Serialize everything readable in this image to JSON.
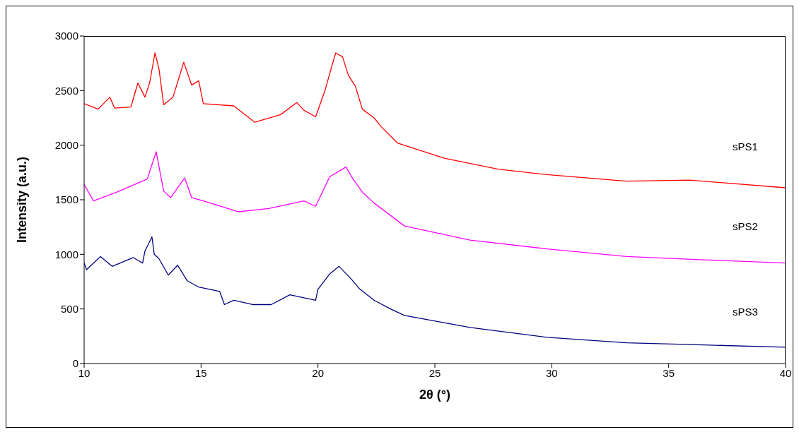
{
  "chart_data": {
    "type": "line",
    "xlabel": "2θ (°)",
    "ylabel": "Intensity (a.u.)",
    "xlim": [
      10,
      40
    ],
    "xticks": [
      10,
      15,
      20,
      25,
      30,
      35,
      40
    ],
    "ylim": [
      0,
      3000
    ],
    "yticks": [
      0,
      500,
      1000,
      1500,
      2000,
      2500,
      3000
    ],
    "grid": false,
    "marker": "none",
    "line_style": "solid",
    "series": [
      {
        "name": "sPS1",
        "color": "#ff0000",
        "x": [
          10,
          10.6,
          11.1,
          11.3,
          12.0,
          12.3,
          12.6,
          12.8,
          13.03,
          13.2,
          13.4,
          13.8,
          14.26,
          14.6,
          14.9,
          15.1,
          16.4,
          17.3,
          18.4,
          19.1,
          19.4,
          19.9,
          20.3,
          20.6,
          20.76,
          21.05,
          21.3,
          21.6,
          21.9,
          22.4,
          22.7,
          23.4,
          25.4,
          27.7,
          29.8,
          33.2,
          35.9,
          40
        ],
        "values": [
          2380,
          2330,
          2440,
          2340,
          2350,
          2570,
          2440,
          2570,
          2845,
          2700,
          2370,
          2440,
          2760,
          2550,
          2590,
          2380,
          2360,
          2210,
          2280,
          2390,
          2320,
          2260,
          2500,
          2730,
          2845,
          2810,
          2640,
          2540,
          2330,
          2250,
          2170,
          2020,
          1880,
          1780,
          1730,
          1670,
          1680,
          1610
        ]
      },
      {
        "name": "sPS2",
        "color": "#ff00ff",
        "x": [
          10,
          10.4,
          11.4,
          12.7,
          13.08,
          13.4,
          13.7,
          14.3,
          14.6,
          15.4,
          16.6,
          17.9,
          19.4,
          19.9,
          20.5,
          21.2,
          21.5,
          21.9,
          22.4,
          23.7,
          26.5,
          29.8,
          33.2,
          36.5,
          40
        ],
        "values": [
          1640,
          1490,
          1570,
          1690,
          1940,
          1580,
          1520,
          1700,
          1520,
          1470,
          1390,
          1420,
          1490,
          1440,
          1710,
          1800,
          1690,
          1570,
          1470,
          1260,
          1130,
          1050,
          980,
          950,
          920
        ]
      },
      {
        "name": "sPS3",
        "color": "#000080",
        "x": [
          10,
          10.1,
          10.7,
          11.2,
          12.1,
          12.5,
          12.6,
          12.9,
          13.0,
          13.2,
          13.6,
          14.0,
          14.4,
          14.9,
          15.8,
          16.0,
          16.4,
          17.2,
          18.0,
          18.8,
          19.9,
          20.0,
          20.5,
          20.9,
          21.4,
          21.8,
          22.4,
          23.1,
          23.7,
          26.5,
          29.8,
          33.2,
          36.5,
          40
        ],
        "values": [
          920,
          860,
          980,
          890,
          970,
          920,
          1030,
          1160,
          1000,
          960,
          810,
          900,
          760,
          700,
          660,
          540,
          580,
          540,
          540,
          630,
          580,
          680,
          820,
          890,
          780,
          680,
          580,
          500,
          440,
          330,
          240,
          190,
          170,
          150
        ]
      }
    ]
  }
}
